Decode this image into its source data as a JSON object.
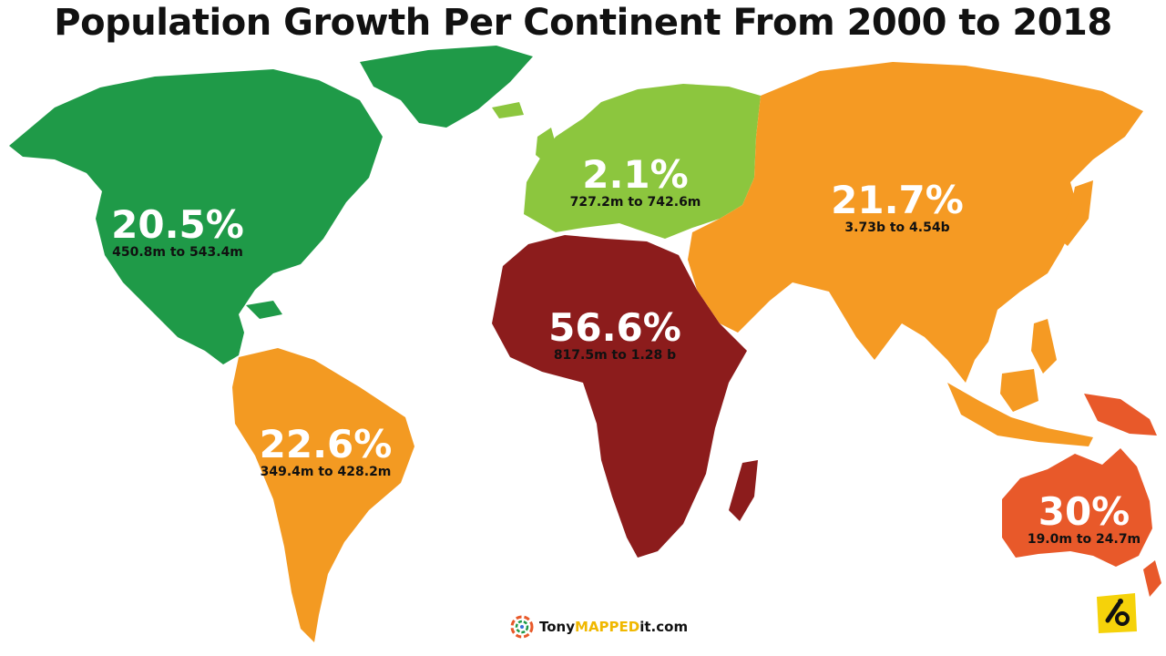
{
  "title": "Population Growth Per Continent From 2000 to 2018",
  "colors": {
    "north_america": "#1f9a48",
    "south_america": "#f39a22",
    "europe": "#8cc63e",
    "africa": "#8c1c1c",
    "asia": "#f59a23",
    "oceania": "#e8592a"
  },
  "regions": [
    {
      "name": "North America",
      "growth": "20.5%",
      "range": "450.8m to 543.4m"
    },
    {
      "name": "South America",
      "growth": "22.6%",
      "range": "349.4m to 428.2m"
    },
    {
      "name": "Europe",
      "growth": "2.1%",
      "range": "727.2m to 742.6m"
    },
    {
      "name": "Africa",
      "growth": "56.6%",
      "range": "817.5m to 1.28 b"
    },
    {
      "name": "Asia",
      "growth": "21.7%",
      "range": "3.73b to 4.54b"
    },
    {
      "name": "Oceania",
      "growth": "30%",
      "range": "19.0m to 24.7m"
    }
  ],
  "credit": {
    "prefix": "Tony",
    "highlight": "MAPPED",
    "suffix": "it.com"
  },
  "icons": {
    "credit_logo": "tonymappedit-logo-icon",
    "corner_badge": "tonymappedit-badge-icon"
  }
}
